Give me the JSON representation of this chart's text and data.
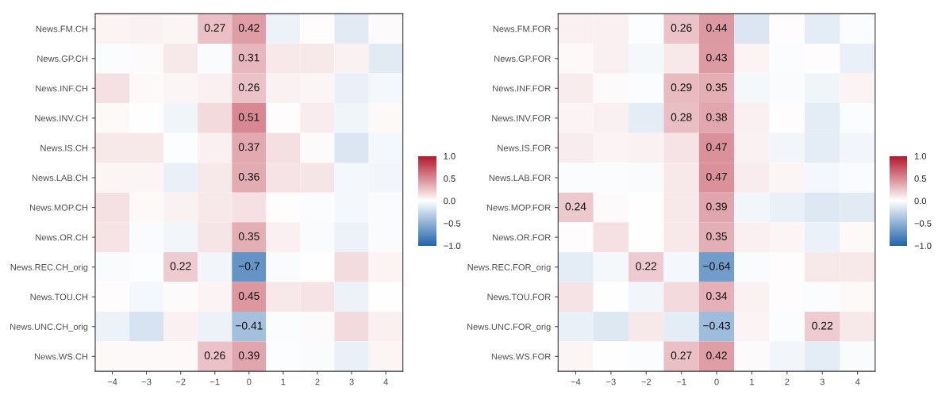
{
  "chart_data": [
    {
      "type": "heatmap",
      "categories": [
        "−4",
        "−3",
        "−2",
        "−1",
        "0",
        "1",
        "2",
        "3",
        "4"
      ],
      "y_categories": [
        "News.FM.CH",
        "News.GP.CH",
        "News.INF.CH",
        "News.INV.CH",
        "News.IS.CH",
        "News.LAB.CH",
        "News.MOP.CH",
        "News.OR.CH",
        "News.REC.CH_orig",
        "News.TOU.CH",
        "News.UNC.CH_orig",
        "News.WS.CH"
      ],
      "cells": [
        [
          0.05,
          0.06,
          0.04,
          0.27,
          0.42,
          -0.08,
          0.01,
          -0.13,
          0.02
        ],
        [
          -0.02,
          0.02,
          0.1,
          -0.03,
          0.31,
          0.1,
          0.1,
          0.06,
          -0.13
        ],
        [
          0.13,
          0.03,
          0.04,
          0.07,
          0.26,
          0.06,
          0.04,
          -0.1,
          -0.05
        ],
        [
          0.03,
          0.0,
          -0.07,
          0.16,
          0.51,
          0.01,
          0.08,
          -0.07,
          0.03
        ],
        [
          0.1,
          0.1,
          -0.01,
          0.07,
          0.37,
          0.14,
          0.02,
          -0.16,
          -0.05
        ],
        [
          0.04,
          0.04,
          -0.1,
          0.1,
          0.36,
          0.12,
          0.11,
          -0.05,
          -0.06
        ],
        [
          0.13,
          0.03,
          0.06,
          0.1,
          0.13,
          0.01,
          -0.02,
          -0.05,
          -0.03
        ],
        [
          0.12,
          -0.03,
          -0.06,
          0.11,
          0.35,
          0.07,
          -0.03,
          -0.08,
          -0.03
        ],
        [
          -0.03,
          -0.01,
          0.22,
          -0.06,
          -0.7,
          -0.03,
          0.0,
          0.15,
          0.05
        ],
        [
          0.01,
          -0.05,
          0.02,
          0.05,
          0.45,
          0.1,
          0.12,
          -0.08,
          0.0
        ],
        [
          -0.08,
          -0.18,
          0.07,
          -0.08,
          -0.41,
          -0.02,
          0.02,
          0.16,
          0.07
        ],
        [
          0.03,
          0.03,
          0.03,
          0.26,
          0.39,
          -0.01,
          -0.03,
          -0.1,
          0.04
        ]
      ],
      "cell_labels": [
        [
          null,
          null,
          null,
          "0.27",
          "0.42",
          null,
          null,
          null,
          null
        ],
        [
          null,
          null,
          null,
          null,
          "0.31",
          null,
          null,
          null,
          null
        ],
        [
          null,
          null,
          null,
          null,
          "0.26",
          null,
          null,
          null,
          null
        ],
        [
          null,
          null,
          null,
          null,
          "0.51",
          null,
          null,
          null,
          null
        ],
        [
          null,
          null,
          null,
          null,
          "0.37",
          null,
          null,
          null,
          null
        ],
        [
          null,
          null,
          null,
          null,
          "0.36",
          null,
          null,
          null,
          null
        ],
        [
          null,
          null,
          null,
          null,
          null,
          null,
          null,
          null,
          null
        ],
        [
          null,
          null,
          null,
          null,
          "0.35",
          null,
          null,
          null,
          null
        ],
        [
          null,
          null,
          "0.22",
          null,
          "−0.7",
          null,
          null,
          null,
          null
        ],
        [
          null,
          null,
          null,
          null,
          "0.45",
          null,
          null,
          null,
          null
        ],
        [
          null,
          null,
          null,
          null,
          "−0.41",
          null,
          null,
          null,
          null
        ],
        [
          null,
          null,
          null,
          "0.26",
          "0.39",
          null,
          null,
          null,
          null
        ]
      ],
      "clim": [
        -1.0,
        1.0
      ],
      "cticks": [
        {
          "value": 1.0,
          "label": "1.0"
        },
        {
          "value": 0.5,
          "label": "0.5"
        },
        {
          "value": 0.0,
          "label": "0.0"
        },
        {
          "value": -0.5,
          "label": "−0.5"
        },
        {
          "value": -1.0,
          "label": "−1.0"
        }
      ]
    },
    {
      "type": "heatmap",
      "categories": [
        "−4",
        "−3",
        "−2",
        "−1",
        "0",
        "1",
        "2",
        "3",
        "4"
      ],
      "y_categories": [
        "News.FM.FOR",
        "News.GP.FOR",
        "News.INF.FOR",
        "News.INV.FOR",
        "News.IS.FOR",
        "News.LAB.FOR",
        "News.MOP.FOR",
        "News.OR.FOR",
        "News.REC.FOR_orig",
        "News.TOU.FOR",
        "News.UNC.FOR_orig",
        "News.WS.FOR"
      ],
      "cells": [
        [
          0.07,
          0.07,
          -0.01,
          0.26,
          0.44,
          -0.16,
          0.01,
          -0.12,
          -0.02
        ],
        [
          0.03,
          0.07,
          -0.04,
          0.1,
          0.43,
          0.05,
          -0.02,
          0.01,
          -0.1
        ],
        [
          0.08,
          0.02,
          -0.02,
          0.29,
          0.35,
          -0.04,
          -0.03,
          -0.07,
          0.05
        ],
        [
          0.05,
          0.07,
          -0.12,
          0.28,
          0.38,
          0.07,
          0.01,
          -0.12,
          -0.02
        ],
        [
          0.08,
          0.05,
          0.06,
          0.12,
          0.47,
          0.06,
          -0.06,
          -0.12,
          -0.06
        ],
        [
          -0.02,
          -0.02,
          -0.03,
          0.1,
          0.47,
          0.08,
          0.04,
          -0.05,
          -0.03
        ],
        [
          0.24,
          0.02,
          0.0,
          0.1,
          0.39,
          -0.06,
          -0.1,
          -0.15,
          -0.13
        ],
        [
          0.01,
          0.13,
          0.0,
          0.1,
          0.35,
          0.07,
          0.04,
          -0.09,
          0.03
        ],
        [
          -0.12,
          -0.04,
          0.22,
          -0.05,
          -0.64,
          -0.03,
          0.01,
          0.1,
          0.1
        ],
        [
          0.12,
          0.0,
          -0.06,
          0.16,
          0.34,
          0.06,
          0.01,
          -0.02,
          0.03
        ],
        [
          -0.1,
          -0.15,
          0.1,
          -0.12,
          -0.43,
          0.05,
          -0.02,
          0.22,
          0.1
        ],
        [
          0.04,
          0.0,
          -0.02,
          0.27,
          0.42,
          0.02,
          -0.06,
          -0.12,
          -0.03
        ]
      ],
      "cell_labels": [
        [
          null,
          null,
          null,
          "0.26",
          "0.44",
          null,
          null,
          null,
          null
        ],
        [
          null,
          null,
          null,
          null,
          "0.43",
          null,
          null,
          null,
          null
        ],
        [
          null,
          null,
          null,
          "0.29",
          "0.35",
          null,
          null,
          null,
          null
        ],
        [
          null,
          null,
          null,
          "0.28",
          "0.38",
          null,
          null,
          null,
          null
        ],
        [
          null,
          null,
          null,
          null,
          "0.47",
          null,
          null,
          null,
          null
        ],
        [
          null,
          null,
          null,
          null,
          "0.47",
          null,
          null,
          null,
          null
        ],
        [
          "0.24",
          null,
          null,
          null,
          "0.39",
          null,
          null,
          null,
          null
        ],
        [
          null,
          null,
          null,
          null,
          "0.35",
          null,
          null,
          null,
          null
        ],
        [
          null,
          null,
          "0.22",
          null,
          "−0.64",
          null,
          null,
          null,
          null
        ],
        [
          null,
          null,
          null,
          null,
          "0.34",
          null,
          null,
          null,
          null
        ],
        [
          null,
          null,
          null,
          null,
          "−0.43",
          null,
          null,
          "0.22",
          null
        ],
        [
          null,
          null,
          null,
          "0.27",
          "0.42",
          null,
          null,
          null,
          null
        ]
      ],
      "clim": [
        -1.0,
        1.0
      ],
      "cticks": [
        {
          "value": 1.0,
          "label": "1.0"
        },
        {
          "value": 0.5,
          "label": "0.5"
        },
        {
          "value": 0.0,
          "label": "0.0"
        },
        {
          "value": -0.5,
          "label": "−0.5"
        },
        {
          "value": -1.0,
          "label": "−1.0"
        }
      ]
    }
  ]
}
